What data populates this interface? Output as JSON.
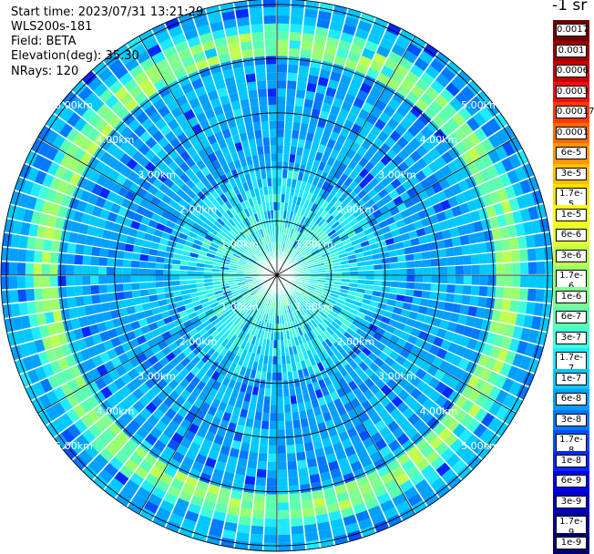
{
  "header": {
    "start_time": "Start time: 2023/07/31 13:21:29",
    "instrument": "WLS200s-181",
    "field": "Field: BETA",
    "elevation": "Elevation(deg): 35.30",
    "nrays": "NRays: 120"
  },
  "colorbar": {
    "unit_label": "-1 sr",
    "labels": [
      "0.0017",
      "0.001",
      "0.0006",
      "0.0003",
      "0.00017",
      "0.0001",
      "6e-5",
      "3e-5",
      "1.7e-5",
      "1e-5",
      "6e-6",
      "3e-6",
      "1.7e-6",
      "1e-6",
      "6e-7",
      "3e-7",
      "1.7e-7",
      "1e-7",
      "6e-8",
      "3e-8",
      "1.7e-8",
      "1e-8",
      "6e-9",
      "3e-9",
      "1.7e-9",
      "1e-9"
    ],
    "colors": [
      "#6e0000",
      "#9c0000",
      "#c80000",
      "#f01010",
      "#ff3a00",
      "#ff6a00",
      "#ff9600",
      "#ffc000",
      "#ffe000",
      "#ffff10",
      "#e6ff30",
      "#c0ff50",
      "#9cff70",
      "#80ff90",
      "#5cffb0",
      "#40ffd8",
      "#20e8ff",
      "#00c8ff",
      "#00a0ff",
      "#0078ff",
      "#0050ff",
      "#0028ff",
      "#0000f0",
      "#0000c0",
      "#00009a",
      "#00006e"
    ]
  },
  "range_ring_labels": [
    "1.00km",
    "2.00km",
    "3.00km",
    "4.00km",
    "5.00km"
  ],
  "chart_data": {
    "type": "heatmap",
    "projection": "polar (PPI scan)",
    "field": "BETA",
    "n_rays": 120,
    "range_rings_km": [
      1,
      2,
      3,
      4,
      5
    ],
    "max_range_km": 5.1,
    "color_scale": "log",
    "value_range": [
      1e-09,
      0.0017
    ],
    "features": [
      {
        "description": "ring of elevated backscatter",
        "range_km": 4.3,
        "approx_value": 1.7e-06
      }
    ]
  }
}
